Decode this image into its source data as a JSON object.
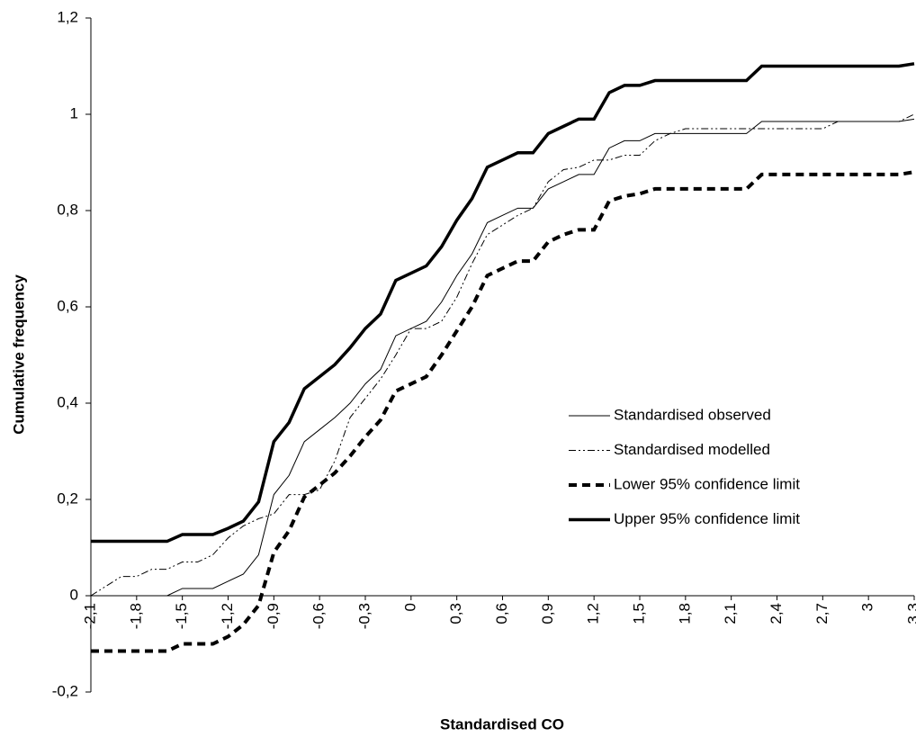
{
  "chart_data": {
    "type": "line",
    "x_label": "Standardised CO",
    "y_label": "Cumulative frequency",
    "x": [
      -2.1,
      -2.0,
      -1.9,
      -1.8,
      -1.7,
      -1.6,
      -1.5,
      -1.4,
      -1.3,
      -1.2,
      -1.1,
      -1.0,
      -0.9,
      -0.8,
      -0.7,
      -0.6,
      -0.5,
      -0.4,
      -0.3,
      -0.2,
      -0.1,
      0,
      0.1,
      0.2,
      0.3,
      0.4,
      0.5,
      0.6,
      0.7,
      0.8,
      0.9,
      1.0,
      1.1,
      1.2,
      1.3,
      1.4,
      1.5,
      1.6,
      1.7,
      1.8,
      1.9,
      2.0,
      2.1,
      2.2,
      2.3,
      2.4,
      2.5,
      2.6,
      2.7,
      2.8,
      2.9,
      3.0,
      3.1,
      3.2,
      3.3
    ],
    "series": [
      {
        "name": "Standardised observed",
        "color": "#000000",
        "style": "thin",
        "values": [
          0,
          0,
          0,
          0,
          0,
          0,
          0.015,
          0.015,
          0.015,
          0.03,
          0.045,
          0.085,
          0.21,
          0.25,
          0.32,
          0.345,
          0.37,
          0.4,
          0.44,
          0.47,
          0.54,
          0.555,
          0.57,
          0.61,
          0.665,
          0.71,
          0.775,
          0.79,
          0.805,
          0.805,
          0.845,
          0.86,
          0.875,
          0.875,
          0.93,
          0.945,
          0.945,
          0.96,
          0.96,
          0.96,
          0.96,
          0.96,
          0.96,
          0.96,
          0.985,
          0.985,
          0.985,
          0.985,
          0.985,
          0.985,
          0.985,
          0.985,
          0.985,
          0.985,
          0.99
        ]
      },
      {
        "name": "Standardised modelled",
        "color": "#000000",
        "style": "dashdot",
        "values": [
          0,
          0.02,
          0.04,
          0.04,
          0.055,
          0.055,
          0.07,
          0.07,
          0.085,
          0.12,
          0.145,
          0.16,
          0.17,
          0.21,
          0.21,
          0.22,
          0.28,
          0.37,
          0.41,
          0.45,
          0.5,
          0.555,
          0.555,
          0.57,
          0.62,
          0.69,
          0.75,
          0.77,
          0.79,
          0.805,
          0.86,
          0.885,
          0.89,
          0.905,
          0.905,
          0.915,
          0.915,
          0.945,
          0.96,
          0.97,
          0.97,
          0.97,
          0.97,
          0.97,
          0.97,
          0.97,
          0.97,
          0.97,
          0.97,
          0.985,
          0.985,
          0.985,
          0.985,
          0.985,
          1.0
        ]
      },
      {
        "name": "Lower 95% confidence limit",
        "color": "#000000",
        "style": "dashed",
        "values": [
          -0.115,
          -0.115,
          -0.115,
          -0.115,
          -0.115,
          -0.115,
          -0.1,
          -0.1,
          -0.1,
          -0.085,
          -0.06,
          -0.02,
          0.09,
          0.135,
          0.205,
          0.23,
          0.255,
          0.29,
          0.33,
          0.365,
          0.425,
          0.44,
          0.455,
          0.5,
          0.55,
          0.6,
          0.665,
          0.68,
          0.695,
          0.695,
          0.735,
          0.75,
          0.76,
          0.76,
          0.82,
          0.83,
          0.835,
          0.845,
          0.845,
          0.845,
          0.845,
          0.845,
          0.845,
          0.845,
          0.875,
          0.875,
          0.875,
          0.875,
          0.875,
          0.875,
          0.875,
          0.875,
          0.875,
          0.875,
          0.88
        ]
      },
      {
        "name": "Upper 95% confidence limit",
        "color": "#000000",
        "style": "thick",
        "values": [
          0.113,
          0.113,
          0.113,
          0.113,
          0.113,
          0.113,
          0.127,
          0.127,
          0.127,
          0.14,
          0.155,
          0.195,
          0.32,
          0.36,
          0.43,
          0.455,
          0.48,
          0.515,
          0.555,
          0.585,
          0.655,
          0.67,
          0.685,
          0.725,
          0.78,
          0.825,
          0.89,
          0.905,
          0.92,
          0.92,
          0.96,
          0.975,
          0.99,
          0.99,
          1.045,
          1.06,
          1.06,
          1.07,
          1.07,
          1.07,
          1.07,
          1.07,
          1.07,
          1.07,
          1.1,
          1.1,
          1.1,
          1.1,
          1.1,
          1.1,
          1.1,
          1.1,
          1.1,
          1.1,
          1.105
        ]
      }
    ],
    "xlim": [
      -2.1,
      3.3
    ],
    "xticks": [
      {
        "value": -2.1,
        "label": "-2,1"
      },
      {
        "value": -1.8,
        "label": "-1,8"
      },
      {
        "value": -1.5,
        "label": "-1,5"
      },
      {
        "value": -1.2,
        "label": "-1,2"
      },
      {
        "value": -0.9,
        "label": "-0,9"
      },
      {
        "value": -0.6,
        "label": "-0,6"
      },
      {
        "value": -0.3,
        "label": "-0,3"
      },
      0,
      {
        "value": 0.3,
        "label": "0,3"
      },
      {
        "value": 0.6,
        "label": "0,6"
      },
      {
        "value": 0.9,
        "label": "0,9"
      },
      {
        "value": 1.2,
        "label": "1,2"
      },
      {
        "value": 1.5,
        "label": "1,5"
      },
      {
        "value": 1.8,
        "label": "1,8"
      },
      {
        "value": 2.1,
        "label": "2,1"
      },
      {
        "value": 2.4,
        "label": "2,4"
      },
      {
        "value": 2.7,
        "label": "2,7"
      },
      3,
      {
        "value": 3.3,
        "label": "3,3"
      }
    ],
    "ylim": [
      -0.2,
      1.2
    ],
    "yticks": [
      {
        "value": -0.2,
        "label": "-0,2"
      },
      0,
      {
        "value": 0.2,
        "label": "0,2"
      },
      {
        "value": 0.4,
        "label": "0,4"
      },
      {
        "value": 0.6,
        "label": "0,6"
      },
      {
        "value": 0.8,
        "label": "0,8"
      },
      1,
      {
        "value": 1.2,
        "label": "1,2"
      }
    ],
    "grid": false,
    "legend": "right"
  }
}
